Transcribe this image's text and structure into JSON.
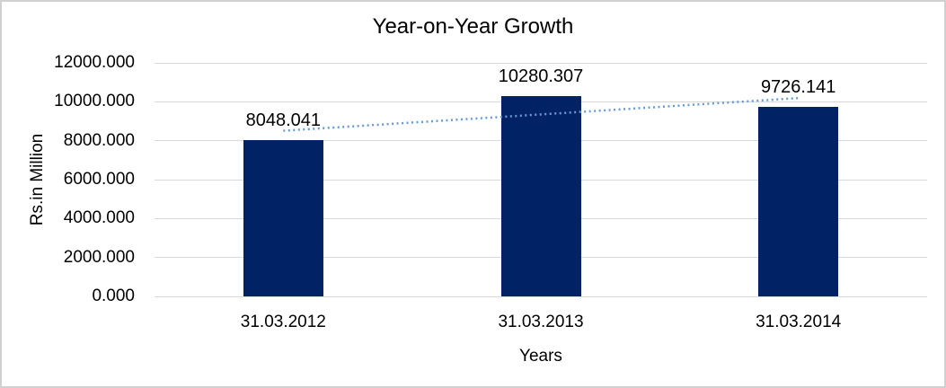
{
  "chart_data": {
    "type": "bar",
    "title": "Year-on-Year Growth",
    "xlabel": "Years",
    "ylabel": "Rs.in Million",
    "categories": [
      "31.03.2012",
      "31.03.2013",
      "31.03.2014"
    ],
    "values": [
      8048.041,
      10280.307,
      9726.141
    ],
    "data_labels": [
      "8048.041",
      "10280.307",
      "9726.141"
    ],
    "ylim": [
      0,
      12000
    ],
    "ytick_step": 2000,
    "ytick_labels": [
      "0.000",
      "2000.000",
      "4000.000",
      "6000.000",
      "8000.000",
      "10000.000",
      "12000.000"
    ],
    "grid": true,
    "legend": "none",
    "trendline": {
      "type": "linear",
      "style": "dotted",
      "color": "#699bd3"
    },
    "colors": {
      "bar": "#012366",
      "gridline": "#d9d9d9",
      "axis_text": "#000000",
      "background": "#ffffff",
      "frame_border": "#d0d0d0"
    }
  }
}
